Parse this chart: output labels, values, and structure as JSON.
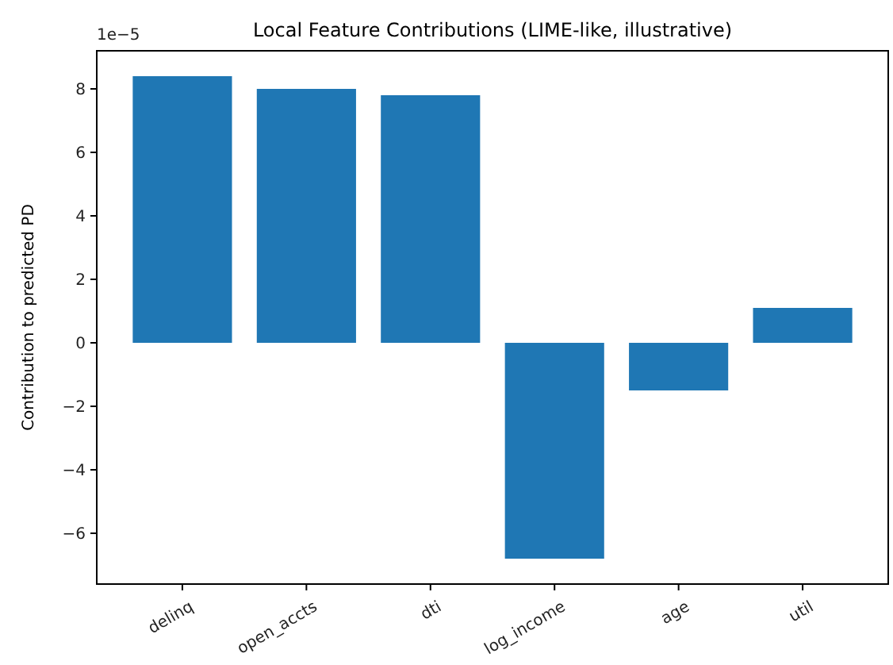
{
  "chart_data": {
    "type": "bar",
    "title": "Local Feature Contributions (LIME-like, illustrative)",
    "ylabel": "Contribution to predicted PD",
    "categories": [
      "delinq",
      "open_accts",
      "dti",
      "log_income",
      "age",
      "util"
    ],
    "values": [
      8.4,
      8.0,
      7.8,
      -6.8,
      -1.5,
      1.1
    ],
    "color": "#1f77b4",
    "ylim": [
      -7.6,
      9.2
    ],
    "yticks": [
      -6,
      -4,
      -2,
      0,
      2,
      4,
      6,
      8
    ],
    "annotations": [
      "1e−5"
    ],
    "grid": false
  }
}
